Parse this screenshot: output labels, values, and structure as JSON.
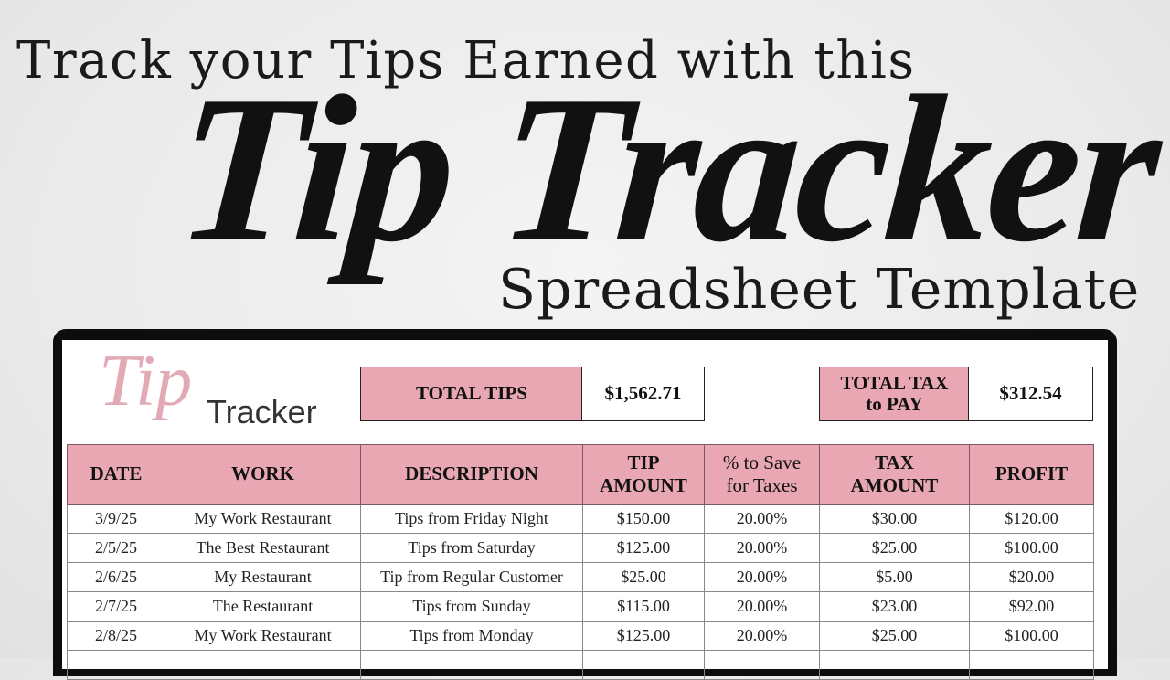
{
  "headline": {
    "line1": "Track your Tips Earned with this",
    "title": "Tip Tracker",
    "line3": "Spreadsheet Template"
  },
  "sheet": {
    "logo": {
      "script": "Tip",
      "word": "Tracker"
    },
    "summary": {
      "total_tips_label": "TOTAL TIPS",
      "total_tips_value": "$1,562.71",
      "total_tax_label_1": "TOTAL TAX",
      "total_tax_label_2": "to PAY",
      "total_tax_value": "$312.54"
    },
    "colors": {
      "header_pink": "#e8a7b3"
    },
    "columns": [
      {
        "l1": "DATE",
        "l2": ""
      },
      {
        "l1": "WORK",
        "l2": ""
      },
      {
        "l1": "DESCRIPTION",
        "l2": ""
      },
      {
        "l1": "TIP",
        "l2": "AMOUNT"
      },
      {
        "l1": "% to Save",
        "l2": "for Taxes"
      },
      {
        "l1": "TAX",
        "l2": "AMOUNT"
      },
      {
        "l1": "PROFIT",
        "l2": ""
      }
    ],
    "rows": [
      [
        "3/9/25",
        "My Work Restaurant",
        "Tips from Friday Night",
        "$150.00",
        "20.00%",
        "$30.00",
        "$120.00"
      ],
      [
        "2/5/25",
        "The Best Restaurant",
        "Tips from Saturday",
        "$125.00",
        "20.00%",
        "$25.00",
        "$100.00"
      ],
      [
        "2/6/25",
        "My Restaurant",
        "Tip from Regular Customer",
        "$25.00",
        "20.00%",
        "$5.00",
        "$20.00"
      ],
      [
        "2/7/25",
        "The Restaurant",
        "Tips from Sunday",
        "$115.00",
        "20.00%",
        "$23.00",
        "$92.00"
      ],
      [
        "2/8/25",
        "My Work Restaurant",
        "Tips from Monday",
        "$125.00",
        "20.00%",
        "$25.00",
        "$100.00"
      ],
      [
        "",
        "",
        "",
        "",
        "",
        "",
        ""
      ]
    ]
  }
}
